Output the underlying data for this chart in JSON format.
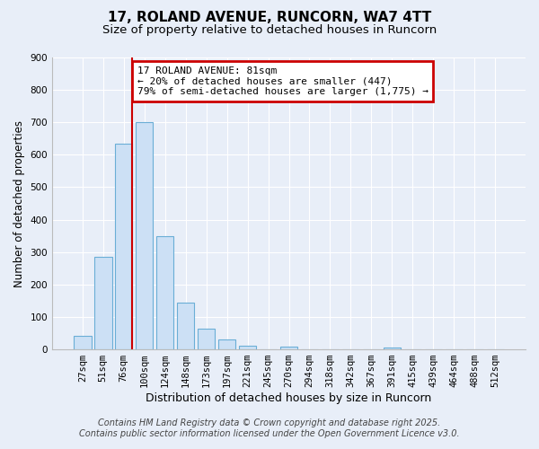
{
  "title": "17, ROLAND AVENUE, RUNCORN, WA7 4TT",
  "subtitle": "Size of property relative to detached houses in Runcorn",
  "xlabel": "Distribution of detached houses by size in Runcorn",
  "ylabel": "Number of detached properties",
  "categories": [
    "27sqm",
    "51sqm",
    "76sqm",
    "100sqm",
    "124sqm",
    "148sqm",
    "173sqm",
    "197sqm",
    "221sqm",
    "245sqm",
    "270sqm",
    "294sqm",
    "318sqm",
    "342sqm",
    "367sqm",
    "391sqm",
    "415sqm",
    "439sqm",
    "464sqm",
    "488sqm",
    "512sqm"
  ],
  "values": [
    43,
    285,
    635,
    700,
    350,
    145,
    63,
    30,
    12,
    0,
    8,
    0,
    0,
    0,
    0,
    5,
    0,
    0,
    0,
    0,
    0
  ],
  "bar_color": "#cce0f5",
  "bar_edge_color": "#6aaed6",
  "vline_color": "#cc0000",
  "annotation_title": "17 ROLAND AVENUE: 81sqm",
  "annotation_line2": "← 20% of detached houses are smaller (447)",
  "annotation_line3": "79% of semi-detached houses are larger (1,775) →",
  "annotation_box_color": "#cc0000",
  "ylim": [
    0,
    900
  ],
  "yticks": [
    0,
    100,
    200,
    300,
    400,
    500,
    600,
    700,
    800,
    900
  ],
  "footer_line1": "Contains HM Land Registry data © Crown copyright and database right 2025.",
  "footer_line2": "Contains public sector information licensed under the Open Government Licence v3.0.",
  "bg_color": "#e8eef8",
  "plot_bg_color": "#e8eef8",
  "grid_color": "#ffffff",
  "title_fontsize": 11,
  "subtitle_fontsize": 9.5,
  "ylabel_fontsize": 8.5,
  "xlabel_fontsize": 9,
  "tick_fontsize": 7.5,
  "footer_fontsize": 7,
  "annotation_fontsize": 8
}
